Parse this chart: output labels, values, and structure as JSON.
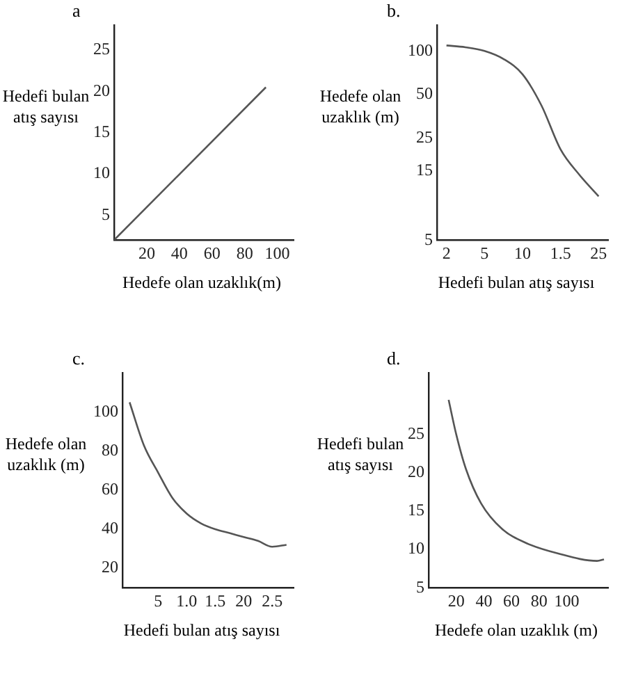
{
  "chart_data": [
    {
      "type": "line",
      "title": "a",
      "xlabel": "Hedefe olan uzaklık(m)",
      "ylabel": "Hedefi bulan atış sayısı",
      "marker": "none",
      "color": "#555555",
      "x": [
        0,
        93
      ],
      "values": [
        2,
        20.5
      ],
      "xlim": [
        0,
        110
      ],
      "ylim": [
        2,
        28
      ],
      "xticks": [
        20,
        40,
        60,
        80,
        100
      ],
      "yticks": [
        5,
        10,
        15,
        20,
        25
      ]
    },
    {
      "type": "line",
      "title": "b.",
      "xlabel": "Hedefi bulan atış sayısı",
      "ylabel": "Hedefe olan uzaklık (m)",
      "marker": "none",
      "color": "#555555",
      "log": "y",
      "categories": [
        "2",
        null,
        "5",
        null,
        "10",
        null,
        "1.5",
        null,
        "25"
      ],
      "values": [
        109,
        106,
        100,
        88,
        69,
        42,
        21,
        14,
        10
      ],
      "ylim": [
        5,
        150
      ],
      "yticks": [
        5,
        15,
        25,
        50,
        100
      ]
    },
    {
      "type": "line",
      "title": "c.",
      "xlabel": "Hedefi bulan atış sayısı",
      "ylabel": "Hedefe olan uzaklık (m)",
      "marker": "none",
      "color": "#555555",
      "categories": [
        null,
        null,
        "5",
        null,
        "1.0",
        null,
        "1.5",
        null,
        "20",
        null,
        "2.5",
        null
      ],
      "values": [
        105,
        83,
        69,
        56,
        48,
        43,
        40,
        38,
        36,
        34,
        31,
        32
      ],
      "ylim": [
        10,
        120
      ],
      "yticks": [
        20,
        40,
        60,
        80,
        100
      ]
    },
    {
      "type": "line",
      "title": "d.",
      "xlabel": "Hedefe olan uzaklık (m)",
      "ylabel": "Hedefi bulan atış sayısı",
      "marker": "none",
      "color": "#555555",
      "x": [
        14.5,
        20,
        27,
        38,
        53,
        71,
        93,
        122,
        127
      ],
      "values": [
        29.5,
        25,
        20.5,
        16,
        12.7,
        10.8,
        9.5,
        8.5,
        8.7
      ],
      "xlim": [
        0,
        130
      ],
      "ylim": [
        5,
        33
      ],
      "xticks": [
        20,
        40,
        60,
        80,
        100
      ],
      "yticks": [
        5,
        10,
        15,
        20,
        25
      ]
    }
  ]
}
